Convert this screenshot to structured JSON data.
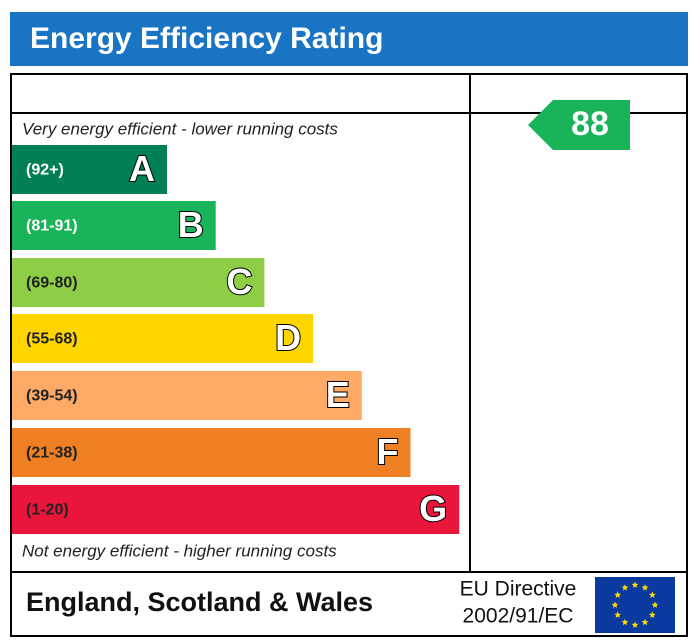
{
  "header": {
    "title": "Energy Efficiency Rating"
  },
  "top_note": "Very energy efficient - lower running costs",
  "bottom_note": "Not energy efficient - higher running costs",
  "bands": [
    {
      "range": "(92+)",
      "letter": "A",
      "color": "#008054",
      "text_color": "#ffffff"
    },
    {
      "range": "(81-91)",
      "letter": "B",
      "color": "#19b459",
      "text_color": "#ffffff"
    },
    {
      "range": "(69-80)",
      "letter": "C",
      "color": "#8dce46",
      "text_color": "#222222"
    },
    {
      "range": "(55-68)",
      "letter": "D",
      "color": "#ffd500",
      "text_color": "#222222"
    },
    {
      "range": "(39-54)",
      "letter": "E",
      "color": "#fcaa65",
      "text_color": "#222222"
    },
    {
      "range": "(21-38)",
      "letter": "F",
      "color": "#ef8023",
      "text_color": "#222222"
    },
    {
      "range": "(1-20)",
      "letter": "G",
      "color": "#e9153b",
      "text_color": "#222222"
    }
  ],
  "rating": {
    "value": 88,
    "color": "#19b459"
  },
  "footer": {
    "region": "England, Scotland & Wales",
    "directive_line1": "EU Directive",
    "directive_line2": "2002/91/EC"
  }
}
